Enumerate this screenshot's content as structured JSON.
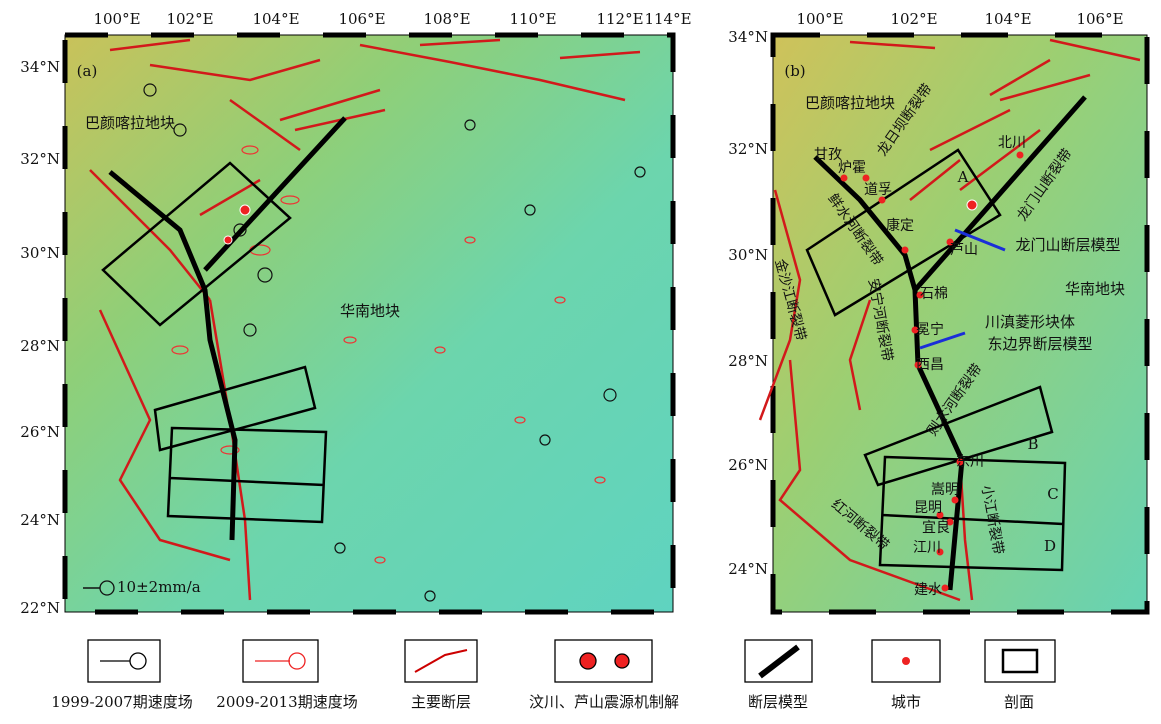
{
  "panel_a": {
    "label": "(a)",
    "lon_labels": [
      "100°E",
      "102°E",
      "104°E",
      "106°E",
      "108°E",
      "110°E",
      "112°E",
      "114°E"
    ],
    "lat_labels": [
      "34°N",
      "32°N",
      "30°N",
      "28°N",
      "26°N",
      "24°N",
      "22°N"
    ],
    "annotations": [
      "巴颜喀拉地块",
      "华南地块",
      "10±2mm/a"
    ]
  },
  "panel_b": {
    "label": "(b)",
    "lon_labels": [
      "100°E",
      "102°E",
      "104°E",
      "106°E"
    ],
    "lat_labels": [
      "34°N",
      "32°N",
      "30°N",
      "28°N",
      "26°N",
      "24°N"
    ],
    "annotations": [
      "巴颜喀拉地块",
      "华南地块",
      "龙门山断层模型",
      "川滇菱形块体",
      "东边界断层模型"
    ],
    "profiles": [
      "A",
      "B",
      "C",
      "D"
    ],
    "cities": [
      "甘孜",
      "炉霍",
      "道孚",
      "康定",
      "芦山",
      "北川",
      "石棉",
      "冕宁",
      "西昌",
      "东川",
      "嵩明",
      "昆明",
      "宜良",
      "江川",
      "建水"
    ],
    "faults": [
      "龙日坝断裂带",
      "鲜水河断裂带",
      "龙门山断裂带",
      "金沙江断裂带",
      "安宁河断裂带",
      "则木河断裂带",
      "小江断裂带",
      "红河断裂带"
    ]
  },
  "legend": [
    "1999-2007期速度场",
    "2009-2013期速度场",
    "主要断层",
    "汶川、芦山震源机制解",
    "断层模型",
    "城市",
    "剖面"
  ]
}
